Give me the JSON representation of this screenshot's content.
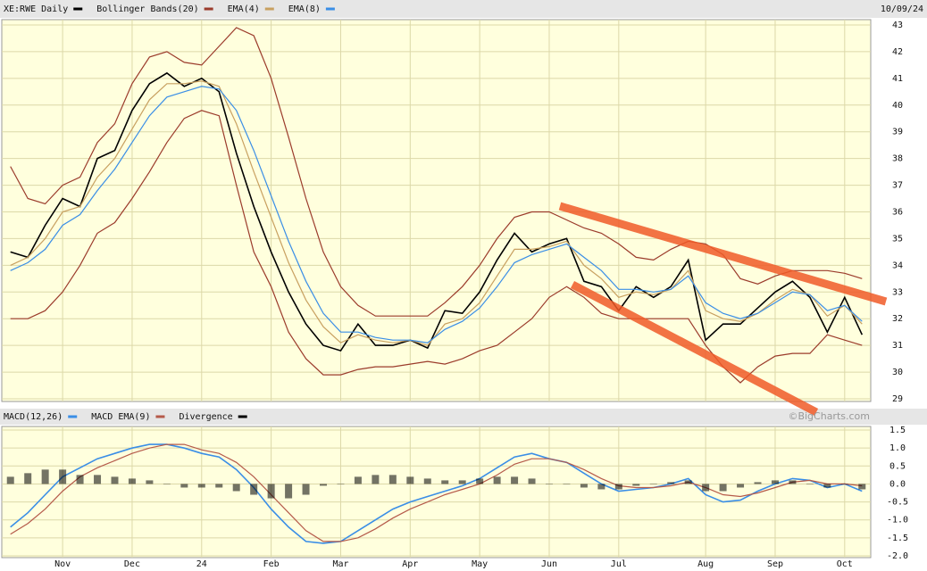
{
  "chart_data": [
    {
      "type": "line",
      "date": "10/09/24",
      "watermark": "©BigCharts.com",
      "ylim": [
        28.9,
        43.2
      ],
      "yticks": [
        29,
        30,
        31,
        32,
        33,
        34,
        35,
        36,
        37,
        38,
        39,
        40,
        41,
        42,
        43
      ],
      "grid": true,
      "series": [
        {
          "name": "XE:RWE Daily",
          "color": "#000000",
          "values": [
            34.5,
            34.3,
            35.5,
            36.5,
            36.2,
            38.0,
            38.3,
            39.8,
            40.8,
            41.2,
            40.7,
            41.0,
            40.5,
            38.2,
            36.2,
            34.5,
            33.0,
            31.8,
            31.0,
            30.8,
            31.8,
            31.0,
            31.0,
            31.2,
            30.9,
            32.3,
            32.2,
            33.0,
            34.2,
            35.2,
            34.5,
            34.8,
            35.0,
            33.4,
            33.2,
            32.3,
            33.2,
            32.8,
            33.2,
            34.2,
            31.2,
            31.8,
            31.8,
            32.4,
            33.0,
            33.4,
            32.8,
            31.5,
            32.8,
            31.4
          ]
        },
        {
          "name": "Bollinger Bands(20)",
          "color": "#9b3b2b",
          "upper": [
            37.7,
            36.5,
            36.3,
            37.0,
            37.3,
            38.6,
            39.3,
            40.8,
            41.8,
            42.0,
            41.6,
            41.5,
            42.2,
            42.9,
            42.6,
            41.0,
            38.8,
            36.5,
            34.5,
            33.2,
            32.5,
            32.1,
            32.1,
            32.1,
            32.1,
            32.6,
            33.2,
            34.0,
            35.0,
            35.8,
            36.0,
            36.0,
            35.7,
            35.4,
            35.2,
            34.8,
            34.3,
            34.2,
            34.6,
            34.9,
            34.8,
            34.4,
            33.5,
            33.3,
            33.6,
            33.8,
            33.8,
            33.8,
            33.7,
            33.5
          ],
          "lower": [
            32.0,
            32.0,
            32.3,
            33.0,
            34.0,
            35.2,
            35.6,
            36.5,
            37.5,
            38.6,
            39.5,
            39.8,
            39.6,
            37.0,
            34.5,
            33.2,
            31.5,
            30.5,
            29.9,
            29.9,
            30.1,
            30.2,
            30.2,
            30.3,
            30.4,
            30.3,
            30.5,
            30.8,
            31.0,
            31.5,
            32.0,
            32.8,
            33.2,
            32.8,
            32.2,
            32.0,
            32.0,
            32.0,
            32.0,
            32.0,
            31.0,
            30.2,
            29.6,
            30.2,
            30.6,
            30.7,
            30.7,
            31.4,
            31.2,
            31.0
          ]
        },
        {
          "name": "EMA(4)",
          "color": "#c8a060",
          "values": [
            34.0,
            34.3,
            35.0,
            36.0,
            36.2,
            37.3,
            38.0,
            39.1,
            40.2,
            40.8,
            40.8,
            40.9,
            40.7,
            39.3,
            37.5,
            35.8,
            34.1,
            32.7,
            31.7,
            31.1,
            31.4,
            31.2,
            31.1,
            31.2,
            31.0,
            31.8,
            32.0,
            32.6,
            33.6,
            34.6,
            34.6,
            34.7,
            34.9,
            34.0,
            33.5,
            32.8,
            33.0,
            32.9,
            33.1,
            33.8,
            32.3,
            32.0,
            31.9,
            32.2,
            32.7,
            33.1,
            32.9,
            32.1,
            32.5,
            31.8
          ]
        },
        {
          "name": "EMA(8)",
          "color": "#3a8ee6",
          "values": [
            33.8,
            34.1,
            34.6,
            35.5,
            35.9,
            36.8,
            37.6,
            38.6,
            39.6,
            40.3,
            40.5,
            40.7,
            40.6,
            39.8,
            38.3,
            36.6,
            34.9,
            33.4,
            32.2,
            31.5,
            31.5,
            31.3,
            31.2,
            31.2,
            31.1,
            31.6,
            31.9,
            32.4,
            33.2,
            34.1,
            34.4,
            34.6,
            34.8,
            34.3,
            33.8,
            33.1,
            33.1,
            33.0,
            33.1,
            33.6,
            32.6,
            32.2,
            32.0,
            32.2,
            32.6,
            33.0,
            32.9,
            32.3,
            32.5,
            31.9
          ]
        }
      ]
    },
    {
      "type": "macd",
      "categories": [
        null,
        null,
        null,
        "Nov",
        null,
        null,
        null,
        "Dec",
        null,
        null,
        null,
        "24",
        null,
        null,
        null,
        "Feb",
        null,
        null,
        null,
        "Mar",
        null,
        null,
        null,
        "Apr",
        null,
        null,
        null,
        "May",
        null,
        null,
        null,
        "Jun",
        null,
        null,
        null,
        "Jul",
        null,
        null,
        null,
        null,
        "Aug",
        null,
        null,
        null,
        "Sep",
        null,
        null,
        null,
        "Oct",
        null
      ],
      "ylim": [
        -2.05,
        1.6
      ],
      "yticks": [
        1.5,
        {
          "value": 1.0,
          "label": "1.0"
        },
        0.5,
        {
          "value": 0.0,
          "label": "0.0"
        },
        -0.5,
        {
          "value": -1.0,
          "label": "-1.0"
        },
        -1.5,
        {
          "value": -2.0,
          "label": "-2.0"
        }
      ],
      "grid": true,
      "series": [
        {
          "name": "MACD(12,26)",
          "color": "#3a8ee6",
          "values": [
            -1.2,
            -0.8,
            -0.3,
            0.2,
            0.45,
            0.7,
            0.85,
            1.0,
            1.1,
            1.1,
            1.0,
            0.85,
            0.75,
            0.4,
            -0.1,
            -0.7,
            -1.2,
            -1.6,
            -1.65,
            -1.6,
            -1.3,
            -1.0,
            -0.7,
            -0.5,
            -0.35,
            -0.2,
            -0.05,
            0.15,
            0.45,
            0.75,
            0.85,
            0.7,
            0.6,
            0.3,
            0.0,
            -0.2,
            -0.15,
            -0.1,
            0.0,
            0.15,
            -0.3,
            -0.5,
            -0.45,
            -0.2,
            0.0,
            0.15,
            0.1,
            -0.1,
            0.0,
            -0.2
          ]
        },
        {
          "name": "MACD EMA(9)",
          "color": "#b55a4a",
          "values": [
            -1.4,
            -1.1,
            -0.7,
            -0.2,
            0.2,
            0.45,
            0.65,
            0.85,
            1.0,
            1.1,
            1.1,
            0.95,
            0.85,
            0.6,
            0.2,
            -0.3,
            -0.8,
            -1.3,
            -1.6,
            -1.6,
            -1.5,
            -1.25,
            -0.95,
            -0.7,
            -0.5,
            -0.3,
            -0.15,
            0.0,
            0.25,
            0.55,
            0.7,
            0.7,
            0.6,
            0.4,
            0.15,
            -0.05,
            -0.1,
            -0.1,
            -0.05,
            0.05,
            -0.1,
            -0.3,
            -0.35,
            -0.25,
            -0.1,
            0.05,
            0.1,
            0.0,
            0.0,
            -0.05
          ]
        },
        {
          "name": "Divergence",
          "color": "#000000",
          "bars": true,
          "values": [
            0.2,
            0.3,
            0.4,
            0.4,
            0.25,
            0.25,
            0.2,
            0.15,
            0.1,
            0,
            -0.1,
            -0.1,
            -0.1,
            -0.2,
            -0.3,
            -0.4,
            -0.4,
            -0.3,
            -0.05,
            0,
            0.2,
            0.25,
            0.25,
            0.2,
            0.15,
            0.1,
            0.1,
            0.15,
            0.2,
            0.2,
            0.15,
            0,
            0,
            -0.1,
            -0.15,
            -0.15,
            -0.05,
            0,
            0.05,
            0.1,
            -0.2,
            -0.2,
            -0.1,
            0.05,
            0.1,
            0.1,
            0,
            -0.1,
            0,
            -0.15
          ]
        }
      ]
    }
  ]
}
